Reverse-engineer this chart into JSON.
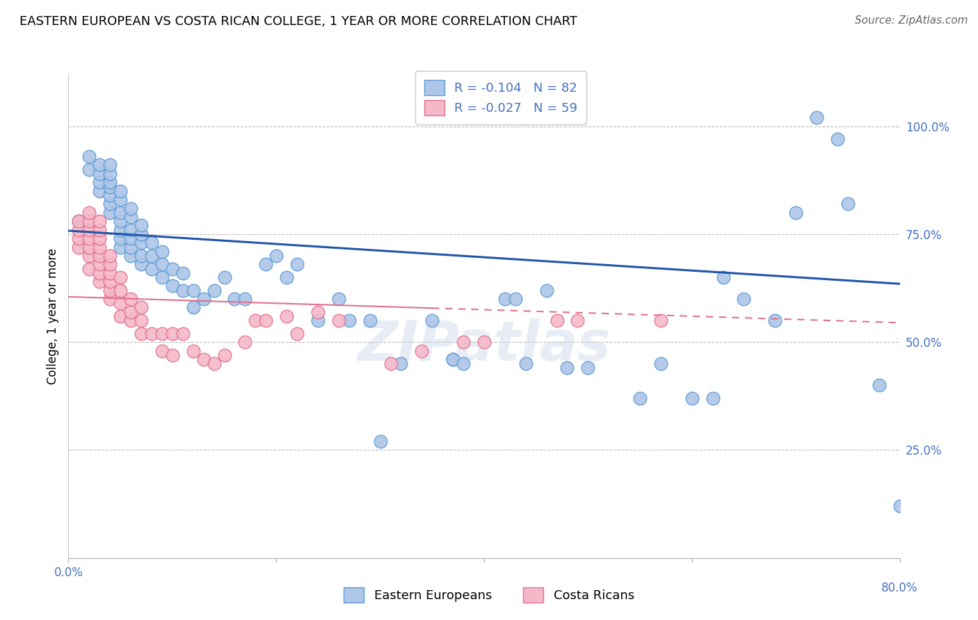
{
  "title": "EASTERN EUROPEAN VS COSTA RICAN COLLEGE, 1 YEAR OR MORE CORRELATION CHART",
  "source": "Source: ZipAtlas.com",
  "ylabel": "College, 1 year or more",
  "ytick_labels": [
    "100.0%",
    "75.0%",
    "50.0%",
    "25.0%"
  ],
  "ytick_values": [
    1.0,
    0.75,
    0.5,
    0.25
  ],
  "xlim": [
    0.0,
    0.8
  ],
  "ylim": [
    0.0,
    1.12
  ],
  "blue_color": "#aec6e8",
  "blue_edge": "#5b9bd5",
  "pink_color": "#f4b8c8",
  "pink_edge": "#e07090",
  "line_blue": "#2255aa",
  "line_pink": "#e07090",
  "legend_blue_R": "-0.104",
  "legend_blue_N": "82",
  "legend_pink_R": "-0.027",
  "legend_pink_N": "59",
  "legend_label_blue": "Eastern Europeans",
  "legend_label_pink": "Costa Ricans",
  "blue_x": [
    0.01,
    0.02,
    0.02,
    0.03,
    0.03,
    0.03,
    0.03,
    0.04,
    0.04,
    0.04,
    0.04,
    0.04,
    0.04,
    0.04,
    0.05,
    0.05,
    0.05,
    0.05,
    0.05,
    0.05,
    0.05,
    0.06,
    0.06,
    0.06,
    0.06,
    0.06,
    0.06,
    0.07,
    0.07,
    0.07,
    0.07,
    0.07,
    0.08,
    0.08,
    0.08,
    0.09,
    0.09,
    0.09,
    0.1,
    0.1,
    0.11,
    0.11,
    0.12,
    0.12,
    0.13,
    0.14,
    0.15,
    0.16,
    0.17,
    0.19,
    0.2,
    0.21,
    0.22,
    0.24,
    0.26,
    0.27,
    0.29,
    0.3,
    0.32,
    0.35,
    0.37,
    0.37,
    0.38,
    0.42,
    0.43,
    0.44,
    0.46,
    0.48,
    0.5,
    0.55,
    0.57,
    0.6,
    0.62,
    0.63,
    0.65,
    0.68,
    0.7,
    0.72,
    0.74,
    0.75,
    0.78,
    0.8
  ],
  "blue_y": [
    0.78,
    0.9,
    0.93,
    0.85,
    0.87,
    0.89,
    0.91,
    0.8,
    0.82,
    0.84,
    0.86,
    0.87,
    0.89,
    0.91,
    0.72,
    0.74,
    0.76,
    0.78,
    0.8,
    0.83,
    0.85,
    0.7,
    0.72,
    0.74,
    0.76,
    0.79,
    0.81,
    0.68,
    0.7,
    0.73,
    0.75,
    0.77,
    0.67,
    0.7,
    0.73,
    0.65,
    0.68,
    0.71,
    0.63,
    0.67,
    0.62,
    0.66,
    0.58,
    0.62,
    0.6,
    0.62,
    0.65,
    0.6,
    0.6,
    0.68,
    0.7,
    0.65,
    0.68,
    0.55,
    0.6,
    0.55,
    0.55,
    0.27,
    0.45,
    0.55,
    0.46,
    0.46,
    0.45,
    0.6,
    0.6,
    0.45,
    0.62,
    0.44,
    0.44,
    0.37,
    0.45,
    0.37,
    0.37,
    0.65,
    0.6,
    0.55,
    0.8,
    1.02,
    0.97,
    0.82,
    0.4,
    0.12
  ],
  "pink_x": [
    0.01,
    0.01,
    0.01,
    0.01,
    0.02,
    0.02,
    0.02,
    0.02,
    0.02,
    0.02,
    0.02,
    0.03,
    0.03,
    0.03,
    0.03,
    0.03,
    0.03,
    0.03,
    0.03,
    0.04,
    0.04,
    0.04,
    0.04,
    0.04,
    0.04,
    0.05,
    0.05,
    0.05,
    0.05,
    0.06,
    0.06,
    0.06,
    0.07,
    0.07,
    0.07,
    0.08,
    0.09,
    0.09,
    0.1,
    0.1,
    0.11,
    0.12,
    0.13,
    0.14,
    0.15,
    0.17,
    0.18,
    0.19,
    0.21,
    0.22,
    0.24,
    0.26,
    0.31,
    0.34,
    0.38,
    0.4,
    0.47,
    0.49,
    0.57
  ],
  "pink_y": [
    0.72,
    0.74,
    0.76,
    0.78,
    0.67,
    0.7,
    0.72,
    0.74,
    0.76,
    0.78,
    0.8,
    0.64,
    0.66,
    0.68,
    0.7,
    0.72,
    0.74,
    0.76,
    0.78,
    0.6,
    0.62,
    0.64,
    0.66,
    0.68,
    0.7,
    0.56,
    0.59,
    0.62,
    0.65,
    0.55,
    0.57,
    0.6,
    0.52,
    0.55,
    0.58,
    0.52,
    0.48,
    0.52,
    0.47,
    0.52,
    0.52,
    0.48,
    0.46,
    0.45,
    0.47,
    0.5,
    0.55,
    0.55,
    0.56,
    0.52,
    0.57,
    0.55,
    0.45,
    0.48,
    0.5,
    0.5,
    0.55,
    0.55,
    0.55
  ],
  "blue_trend": [
    0.0,
    0.758,
    0.8,
    0.635
  ],
  "pink_trend": [
    0.0,
    0.605,
    0.8,
    0.545
  ]
}
